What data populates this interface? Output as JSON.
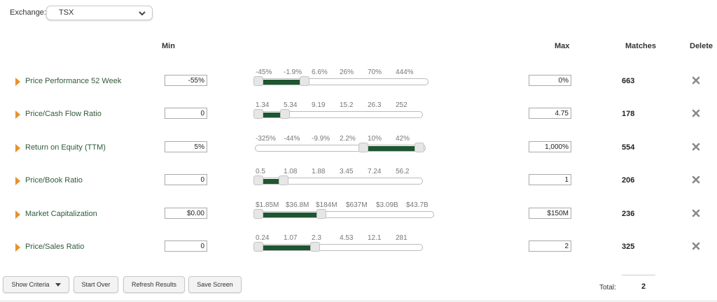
{
  "exchange": {
    "label": "Exchange:",
    "value": "TSX"
  },
  "headers": {
    "min": "Min",
    "max": "Max",
    "matches": "Matches",
    "delete": "Delete"
  },
  "colors": {
    "accent": "#1e5631",
    "arrow": "#e8912e",
    "criteria_text": "#2f5a3a"
  },
  "criteria": [
    {
      "name": "Price Performance 52 Week",
      "min": "-55%",
      "max": "0%",
      "matches": "663",
      "ticks": [
        "-45%",
        "-1.9%",
        "6.6%",
        "26%",
        "70%",
        "444%"
      ],
      "range_low": 0.0,
      "range_high": 0.28
    },
    {
      "name": "Price/Cash Flow Ratio",
      "min": "0",
      "max": "4.75",
      "matches": "178",
      "ticks": [
        "1.34",
        "5.34",
        "9.19",
        "15.2",
        "26.3",
        "252"
      ],
      "range_low": 0.0,
      "range_high": 0.17
    },
    {
      "name": "Return on Equity (TTM)",
      "min": "5%",
      "max": "1,000%",
      "matches": "554",
      "ticks": [
        "-325%",
        "-44%",
        "-9.9%",
        "2.2%",
        "10%",
        "42%"
      ],
      "range_low": 0.65,
      "range_high": 1.0
    },
    {
      "name": "Price/Book Ratio",
      "min": "0",
      "max": "1",
      "matches": "206",
      "ticks": [
        "0.5",
        "1.08",
        "1.88",
        "3.45",
        "7.24",
        "56.2"
      ],
      "range_low": 0.0,
      "range_high": 0.16
    },
    {
      "name": "Market Capitalization",
      "min": "$0.00",
      "max": "$150M",
      "matches": "236",
      "ticks": [
        "$1.85M",
        "$36.8M",
        "$184M",
        "$637M",
        "$3.09B",
        "$43.7B"
      ],
      "range_low": 0.0,
      "range_high": 0.37
    },
    {
      "name": "Price/Sales Ratio",
      "min": "0",
      "max": "2",
      "matches": "325",
      "ticks": [
        "0.24",
        "1.07",
        "2.3",
        "4.53",
        "12.1",
        "281"
      ],
      "range_low": 0.0,
      "range_high": 0.36
    }
  ],
  "buttons": {
    "show_criteria": "Show Criteria",
    "start_over": "Start Over",
    "refresh": "Refresh Results",
    "save_screen": "Save Screen"
  },
  "total": {
    "label": "Total:",
    "value": "2"
  }
}
